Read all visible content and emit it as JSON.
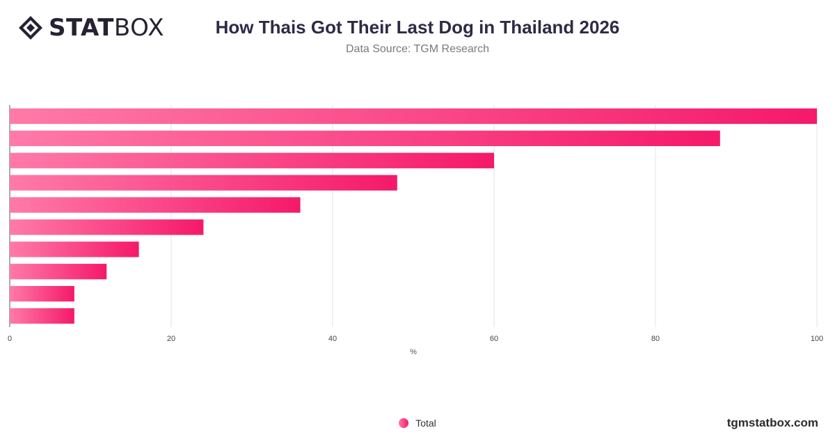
{
  "brand": {
    "logo_bold": "STAT",
    "logo_light": "BOX"
  },
  "header": {
    "title": "How Thais Got Their Last Dog in Thailand 2026",
    "subtitle": "Data Source: TGM Research"
  },
  "footer": {
    "site": "tgmstatbox.com"
  },
  "colors": {
    "bar_start": "#ff7aa8",
    "bar_end": "#f5196a",
    "grid": "#e3e3e3",
    "text": "#333333"
  },
  "chart_data": {
    "type": "bar",
    "orientation": "horizontal",
    "categories": [
      "",
      "",
      "",
      "",
      "",
      "",
      "",
      "",
      "",
      ""
    ],
    "series": [
      {
        "name": "Total",
        "values": [
          100,
          88,
          60,
          48,
          36,
          24,
          16,
          12,
          8,
          8
        ]
      }
    ],
    "xlabel": "%",
    "ylabel": "",
    "xlim": [
      0,
      100
    ],
    "xticks": [
      0,
      20,
      40,
      60,
      80,
      100
    ],
    "grid": true,
    "legend": {
      "position": "bottom",
      "entries": [
        "Total"
      ]
    }
  }
}
